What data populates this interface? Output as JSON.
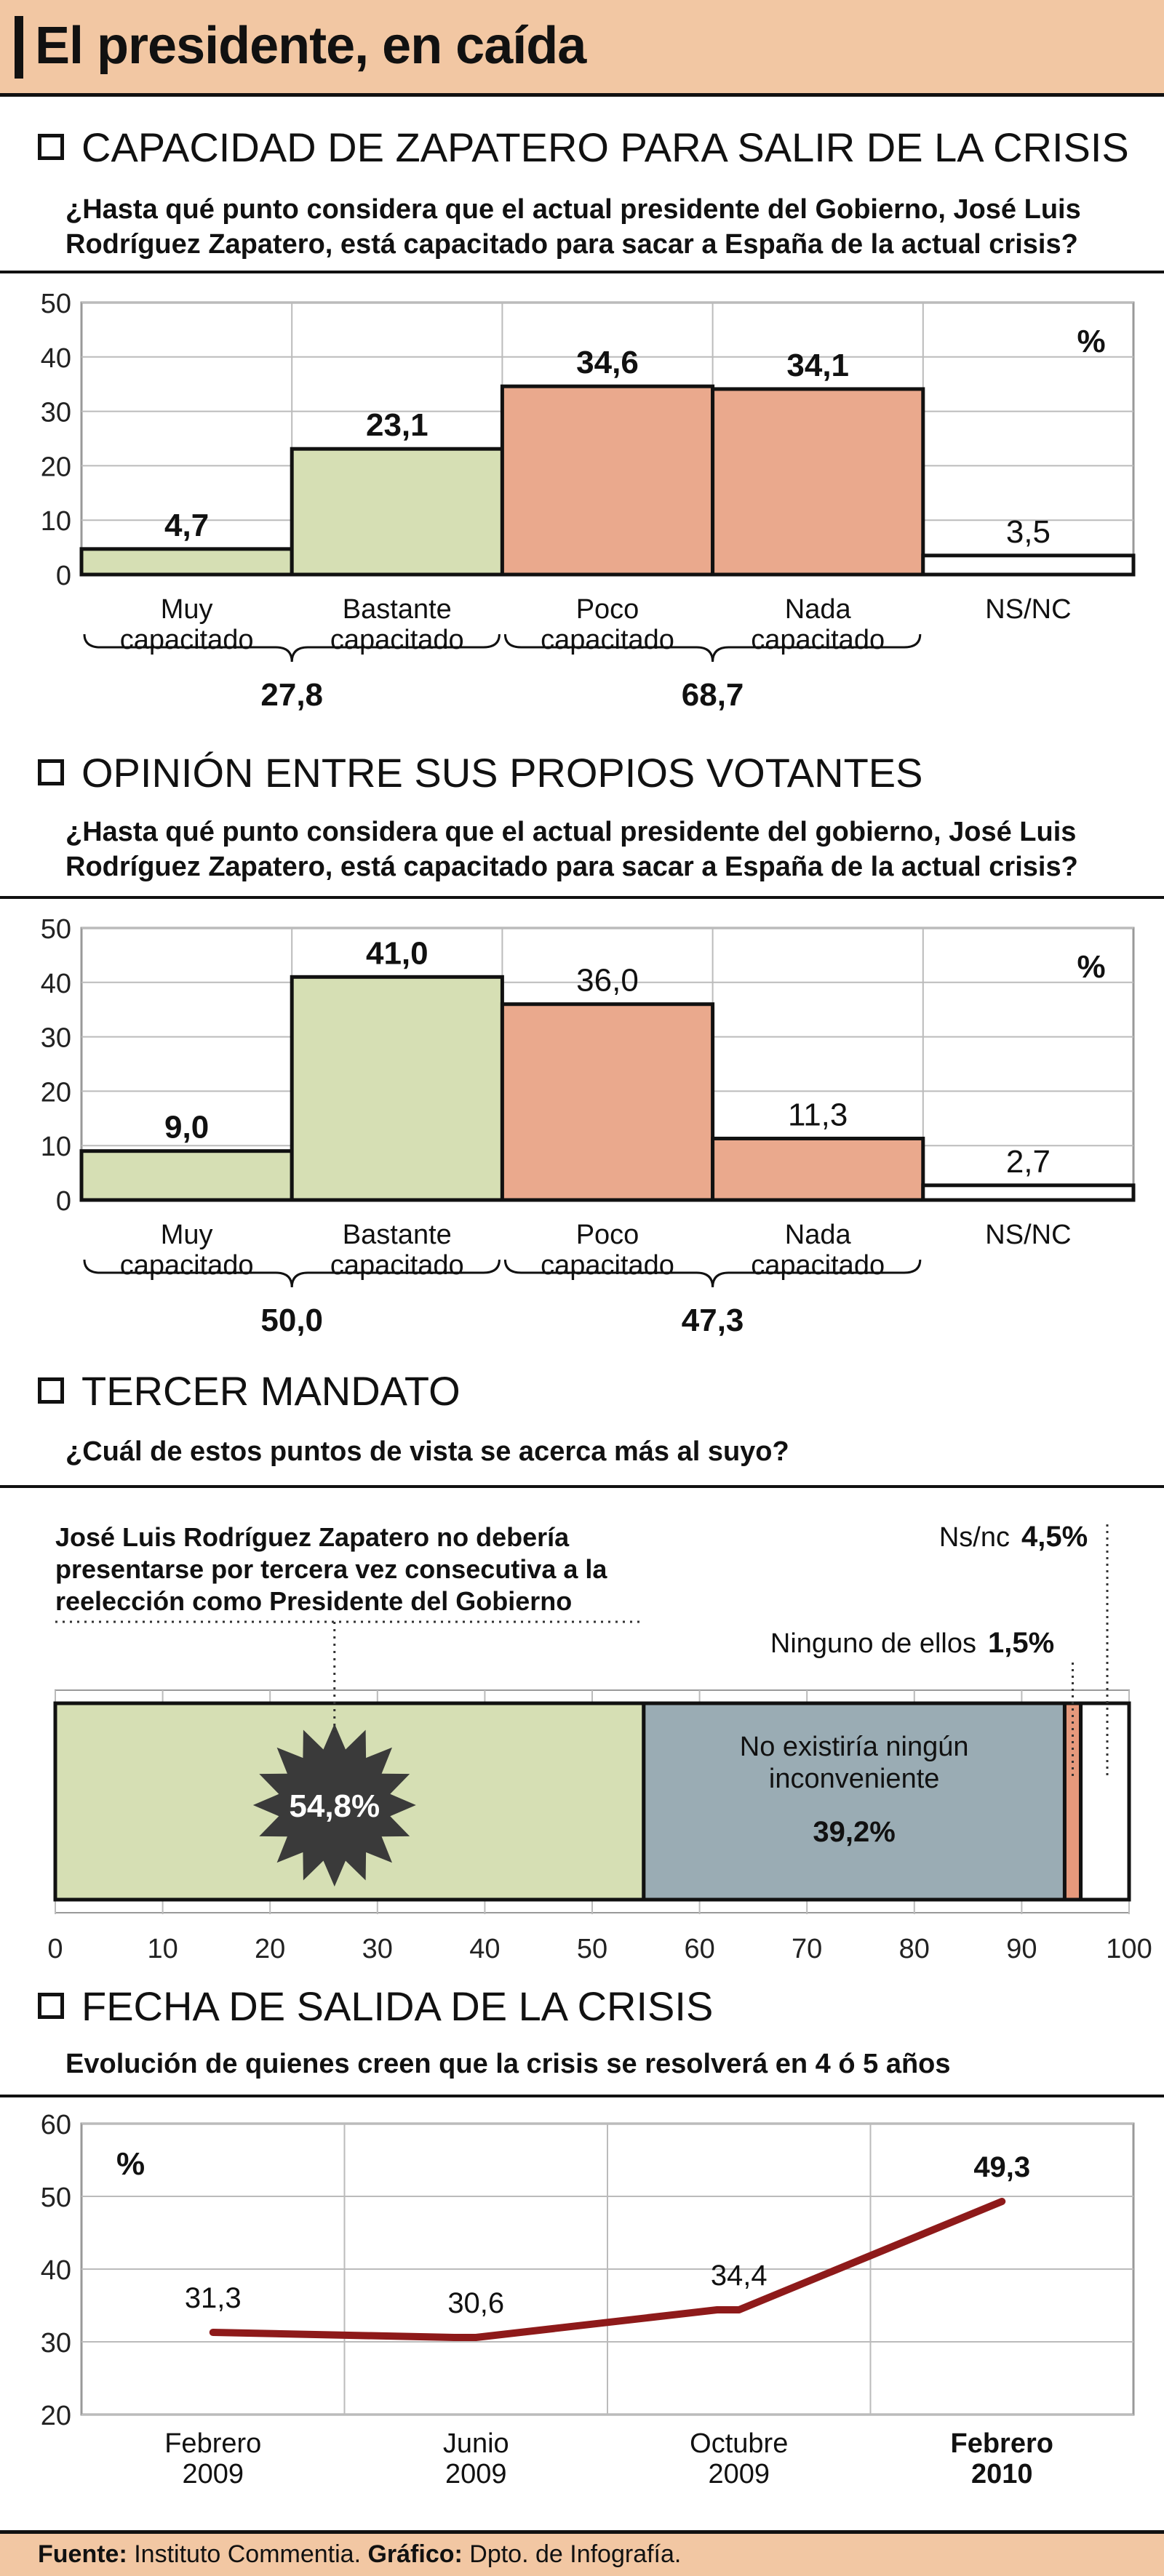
{
  "title": "El presidente, en caída",
  "sections": [
    {
      "heading": "CAPACIDAD DE ZAPATERO PARA SALIR DE LA CRISIS",
      "question_line1": "¿Hasta qué punto considera que el actual presidente del Gobierno, José Luis",
      "question_line2": "Rodríguez Zapatero, está capacitado para sacar a España de la actual crisis?"
    },
    {
      "heading": "OPINIÓN ENTRE SUS PROPIOS VOTANTES",
      "question_line1": "¿Hasta qué punto considera que el actual presidente del gobierno, José Luis",
      "question_line2": "Rodríguez Zapatero, está capacitado para sacar a España de la actual crisis?"
    },
    {
      "heading": "TERCER MANDATO",
      "question_line1": "¿Cuál de estos puntos de vista se acerca más al suyo?"
    },
    {
      "heading": "FECHA DE SALIDA DE LA CRISIS",
      "question_line1": "Evolución de quienes creen que la crisis se resolverá en 4 ó 5 años"
    }
  ],
  "chart_data": [
    {
      "type": "bar",
      "unit": "%",
      "categories": [
        [
          "Muy",
          "capacitado"
        ],
        [
          "Bastante",
          "capacitado"
        ],
        [
          "Poco",
          "capacitado"
        ],
        [
          "Nada",
          "capacitado"
        ],
        [
          "NS/NC"
        ]
      ],
      "values": [
        4.7,
        23.1,
        34.6,
        34.1,
        3.5
      ],
      "value_labels": [
        "4,7",
        "23,1",
        "34,6",
        "34,1",
        "3,5"
      ],
      "value_bold": [
        true,
        true,
        true,
        true,
        false
      ],
      "colors": [
        "#d6dfb4",
        "#d6dfb4",
        "#eaa98d",
        "#eaa98d",
        "#ffffff"
      ],
      "ylim": [
        0,
        50
      ],
      "yticks": [
        0,
        10,
        20,
        30,
        40,
        50
      ],
      "groups": [
        {
          "from": 0,
          "to": 1,
          "total": "27,8"
        },
        {
          "from": 2,
          "to": 3,
          "total": "68,7"
        }
      ]
    },
    {
      "type": "bar",
      "unit": "%",
      "categories": [
        [
          "Muy",
          "capacitado"
        ],
        [
          "Bastante",
          "capacitado"
        ],
        [
          "Poco",
          "capacitado"
        ],
        [
          "Nada",
          "capacitado"
        ],
        [
          "NS/NC"
        ]
      ],
      "values": [
        9.0,
        41.0,
        36.0,
        11.3,
        2.7
      ],
      "value_labels": [
        "9,0",
        "41,0",
        "36,0",
        "11,3",
        "2,7"
      ],
      "value_bold": [
        true,
        true,
        false,
        false,
        false
      ],
      "colors": [
        "#d6dfb4",
        "#d6dfb4",
        "#eaa98d",
        "#eaa98d",
        "#ffffff"
      ],
      "ylim": [
        0,
        50
      ],
      "yticks": [
        0,
        10,
        20,
        30,
        40,
        50
      ],
      "groups": [
        {
          "from": 0,
          "to": 1,
          "total": "50,0"
        },
        {
          "from": 2,
          "to": 3,
          "total": "47,3"
        }
      ]
    },
    {
      "type": "bar",
      "orientation": "horizontal-stacked",
      "xlim": [
        0,
        100
      ],
      "xticks": [
        0,
        10,
        20,
        30,
        40,
        50,
        60,
        70,
        80,
        90,
        100
      ],
      "segments": [
        {
          "name": "José Luis Rodríguez Zapatero no debería presentarse por tercera vez consecutiva a la reelección como Presidente del Gobierno",
          "name_lines": [
            "José Luis Rodríguez Zapatero no debería",
            "presentarse por tercera vez consecutiva a la",
            "reelección como Presidente del Gobierno"
          ],
          "value": 54.8,
          "label": "54,8%",
          "color": "#d6dfb4"
        },
        {
          "name": "No existiría ningún inconveniente",
          "name_lines": [
            "No existiría ningún",
            "inconveniente"
          ],
          "value": 39.2,
          "label": "39,2%",
          "color": "#9aacb4"
        },
        {
          "name": "Ninguno de ellos",
          "value": 1.5,
          "label": "1,5%",
          "color": "#e6997c"
        },
        {
          "name": "Ns/nc",
          "value": 4.5,
          "label": "4,5%",
          "color": "#ffffff"
        }
      ]
    },
    {
      "type": "line",
      "unit": "%",
      "x": [
        [
          "Febrero",
          "2009"
        ],
        [
          "Junio",
          "2009"
        ],
        [
          "Octubre",
          "2009"
        ],
        [
          "Febrero",
          "2010"
        ]
      ],
      "x_bold": [
        false,
        false,
        false,
        true
      ],
      "values": [
        31.3,
        30.6,
        34.4,
        49.3
      ],
      "value_labels": [
        "31,3",
        "30,6",
        "34,4",
        "49,3"
      ],
      "value_bold": [
        false,
        false,
        false,
        true
      ],
      "color": "#8e1a1a",
      "ylim": [
        20,
        60
      ],
      "yticks": [
        20,
        30,
        40,
        50,
        60
      ]
    }
  ],
  "footer": {
    "source_label": "Fuente:",
    "source": " Instituto Commentia. ",
    "graphic_label": "Gráfico:",
    "graphic": " Dpto. de Infografía."
  }
}
